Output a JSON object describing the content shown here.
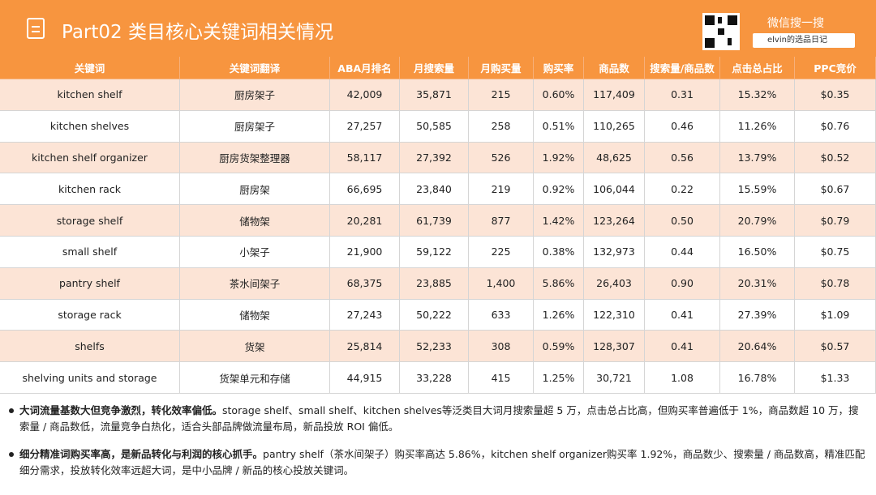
{
  "header": {
    "title": "Part02 类目核心关键词相关情况",
    "search_label": "微信搜一搜",
    "search_text": "elvin的选品日记"
  },
  "table": {
    "columns": [
      "关键词",
      "关键词翻译",
      "ABA月排名",
      "月搜索量",
      "月购买量",
      "购买率",
      "商品数",
      "搜索量/商品数",
      "点击总占比",
      "PPC竞价"
    ],
    "rows": [
      [
        "kitchen shelf",
        "厨房架子",
        "42,009",
        "35,871",
        "215",
        "0.60%",
        "117,409",
        "0.31",
        "15.32%",
        "$0.35"
      ],
      [
        "kitchen shelves",
        "厨房架子",
        "27,257",
        "50,585",
        "258",
        "0.51%",
        "110,265",
        "0.46",
        "11.26%",
        "$0.76"
      ],
      [
        "kitchen shelf organizer",
        "厨房货架整理器",
        "58,117",
        "27,392",
        "526",
        "1.92%",
        "48,625",
        "0.56",
        "13.79%",
        "$0.52"
      ],
      [
        "kitchen rack",
        "厨房架",
        "66,695",
        "23,840",
        "219",
        "0.92%",
        "106,044",
        "0.22",
        "15.59%",
        "$0.67"
      ],
      [
        "storage shelf",
        "储物架",
        "20,281",
        "61,739",
        "877",
        "1.42%",
        "123,264",
        "0.50",
        "20.79%",
        "$0.79"
      ],
      [
        "small shelf",
        "小架子",
        "21,900",
        "59,122",
        "225",
        "0.38%",
        "132,973",
        "0.44",
        "16.50%",
        "$0.75"
      ],
      [
        "pantry shelf",
        "茶水间架子",
        "68,375",
        "23,885",
        "1,400",
        "5.86%",
        "26,403",
        "0.90",
        "20.31%",
        "$0.78"
      ],
      [
        "storage rack",
        "储物架",
        "27,243",
        "50,222",
        "633",
        "1.26%",
        "122,310",
        "0.41",
        "27.39%",
        "$1.09"
      ],
      [
        "shelfs",
        "货架",
        "25,814",
        "52,233",
        "308",
        "0.59%",
        "128,307",
        "0.41",
        "20.64%",
        "$0.57"
      ],
      [
        "shelving units and storage",
        "货架单元和存储",
        "44,915",
        "33,228",
        "415",
        "1.25%",
        "30,721",
        "1.08",
        "16.78%",
        "$1.33"
      ]
    ]
  },
  "notes": [
    {
      "bold": "大词流量基数大但竞争激烈，转化效率偏低。",
      "text": "storage shelf、small shelf、kitchen shelves等泛类目大词月搜索量超 5 万，点击总占比高，但购买率普遍低于 1%，商品数超 10 万，搜索量 / 商品数低，流量竞争白热化，适合头部品牌做流量布局，新品投放 ROI 偏低。"
    },
    {
      "bold": "细分精准词购买率高，是新品转化与利润的核心抓手。",
      "text": "pantry shelf（茶水间架子）购买率高达 5.86%，kitchen shelf organizer购买率 1.92%，商品数少、搜索量 / 商品数高，精准匹配细分需求，投放转化效率远超大词，是中小品牌 / 新品的核心投放关键词。"
    }
  ]
}
